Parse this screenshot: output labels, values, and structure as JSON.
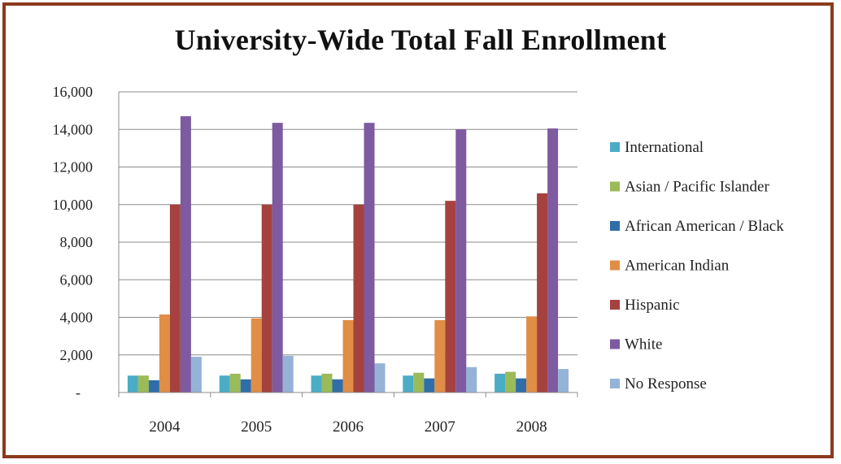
{
  "chart_data": {
    "type": "bar",
    "title": "University-Wide Total Fall Enrollment",
    "categories": [
      "2004",
      "2005",
      "2006",
      "2007",
      "2008"
    ],
    "ylim": [
      0,
      16000
    ],
    "yticks": [
      "-",
      "2,000",
      "4,000",
      "6,000",
      "8,000",
      "10,000",
      "12,000",
      "14,000",
      "16,000"
    ],
    "grid": true,
    "legend_position": "right",
    "series": [
      {
        "name": "International",
        "color": "#4bacc6",
        "values": [
          900,
          900,
          900,
          900,
          1000
        ]
      },
      {
        "name": "Asian / Pacific Islander",
        "color": "#9bbb59",
        "values": [
          900,
          1000,
          1000,
          1050,
          1100
        ]
      },
      {
        "name": "African American / Black",
        "color": "#2f6ea8",
        "values": [
          650,
          700,
          700,
          750,
          750
        ]
      },
      {
        "name": "American Indian",
        "color": "#e08d46",
        "values": [
          4150,
          3950,
          3850,
          3850,
          4050
        ]
      },
      {
        "name": "Hispanic",
        "color": "#a5423f",
        "values": [
          10000,
          10000,
          10000,
          10200,
          10600
        ]
      },
      {
        "name": "White",
        "color": "#7e5aa0",
        "values": [
          14700,
          14350,
          14350,
          14000,
          14050
        ]
      },
      {
        "name": "No Response",
        "color": "#95b3d7",
        "values": [
          1900,
          1950,
          1550,
          1350,
          1250
        ]
      }
    ]
  }
}
